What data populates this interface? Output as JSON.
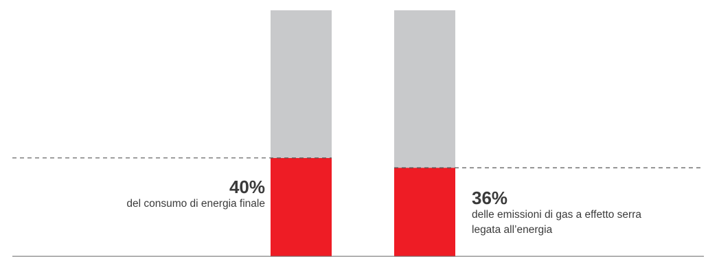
{
  "chart_data": {
    "type": "bar",
    "stacked": true,
    "categories": [
      "del consumo di energia finale",
      "delle emissioni di gas a effetto serra legata all’energia"
    ],
    "series": [
      {
        "values": [
          40,
          36
        ],
        "color": "#ee1c25"
      },
      {
        "values": [
          60,
          64
        ],
        "color": "#c8c9cb"
      }
    ],
    "ylim": [
      0,
      100
    ],
    "grid": false,
    "legend": "none",
    "reference_lines": [
      40,
      36
    ]
  },
  "callouts": [
    {
      "value": "40%",
      "lines": [
        "del consumo di energia finale"
      ]
    },
    {
      "value": "36%",
      "lines": [
        "delle emissioni di gas a effetto serra",
        "legata all’energia"
      ]
    }
  ],
  "colors": {
    "accent": "#ee1c25",
    "rest": "#c8c9cb",
    "text": "#3a3a3a",
    "line": "#555555"
  }
}
